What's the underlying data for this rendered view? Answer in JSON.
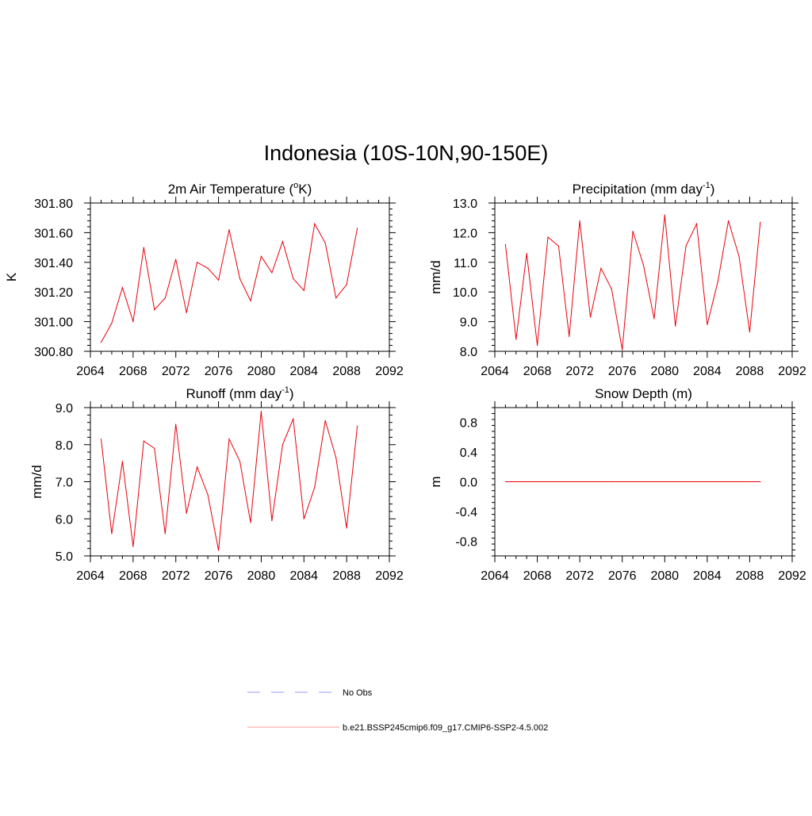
{
  "page_title": "Indonesia (10S-10N,90-150E)",
  "colors": {
    "model_line": "#e8000b",
    "obs_line": "#9a9aff",
    "axis": "#000000",
    "model_legend": "#ff9a9a"
  },
  "legend": {
    "items": [
      {
        "label": "No Obs",
        "style": "dashed",
        "color": "#9a9aff"
      },
      {
        "label": "b.e21.BSSP245cmip6.f09_g17.CMIP6-SSP2-4.5.002",
        "style": "solid",
        "color": "#ff9a9a"
      }
    ]
  },
  "chart_data": [
    {
      "id": "temp",
      "type": "line",
      "title": "2m Air Temperature (",
      "title_sup": "o",
      "title_end": "K)",
      "ylabel": "K",
      "xlim": [
        2064,
        2092
      ],
      "ylim": [
        300.8,
        301.8
      ],
      "xticks": [
        2064,
        2068,
        2072,
        2076,
        2080,
        2084,
        2088,
        2092
      ],
      "yticks": [
        300.8,
        301.0,
        301.2,
        301.4,
        301.6,
        301.8
      ],
      "ytick_labels": [
        "300.80",
        "301.00",
        "301.20",
        "301.40",
        "301.60",
        "301.80"
      ],
      "x": [
        2065,
        2066,
        2067,
        2068,
        2069,
        2070,
        2071,
        2072,
        2073,
        2074,
        2075,
        2076,
        2077,
        2078,
        2079,
        2080,
        2081,
        2082,
        2083,
        2084,
        2085,
        2086,
        2087,
        2088,
        2089
      ],
      "series": [
        {
          "values": [
            300.86,
            300.99,
            301.23,
            301.0,
            301.5,
            301.08,
            301.16,
            301.42,
            301.06,
            301.4,
            301.36,
            301.28,
            301.62,
            301.29,
            301.14,
            301.44,
            301.33,
            301.54,
            301.29,
            301.21,
            301.66,
            301.53,
            301.16,
            301.25,
            301.63
          ]
        }
      ]
    },
    {
      "id": "precip",
      "type": "line",
      "title": "Precipitation (mm day",
      "title_sup": "-1",
      "title_end": ")",
      "ylabel": "mm/d",
      "xlim": [
        2064,
        2092
      ],
      "ylim": [
        8.0,
        13.0
      ],
      "xticks": [
        2064,
        2068,
        2072,
        2076,
        2080,
        2084,
        2088,
        2092
      ],
      "yticks": [
        8.0,
        9.0,
        10.0,
        11.0,
        12.0,
        13.0
      ],
      "ytick_labels": [
        "8.0",
        "9.0",
        "10.0",
        "11.0",
        "12.0",
        "13.0"
      ],
      "x": [
        2065,
        2066,
        2067,
        2068,
        2069,
        2070,
        2071,
        2072,
        2073,
        2074,
        2075,
        2076,
        2077,
        2078,
        2079,
        2080,
        2081,
        2082,
        2083,
        2084,
        2085,
        2086,
        2087,
        2088,
        2089
      ],
      "series": [
        {
          "values": [
            11.6,
            8.4,
            11.3,
            8.2,
            11.85,
            11.55,
            8.5,
            12.4,
            9.15,
            10.8,
            10.1,
            8.05,
            12.05,
            10.9,
            9.1,
            12.6,
            8.85,
            11.55,
            12.3,
            8.9,
            10.35,
            12.4,
            11.2,
            8.65,
            12.35
          ]
        }
      ]
    },
    {
      "id": "runoff",
      "type": "line",
      "title": "Runoff (mm day",
      "title_sup": "-1",
      "title_end": ")",
      "ylabel": "mm/d",
      "xlim": [
        2064,
        2092
      ],
      "ylim": [
        5.0,
        9.0
      ],
      "xticks": [
        2064,
        2068,
        2072,
        2076,
        2080,
        2084,
        2088,
        2092
      ],
      "yticks": [
        5.0,
        6.0,
        7.0,
        8.0,
        9.0
      ],
      "ytick_labels": [
        "5.0",
        "6.0",
        "7.0",
        "8.0",
        "9.0"
      ],
      "x": [
        2065,
        2066,
        2067,
        2068,
        2069,
        2070,
        2071,
        2072,
        2073,
        2074,
        2075,
        2076,
        2077,
        2078,
        2079,
        2080,
        2081,
        2082,
        2083,
        2084,
        2085,
        2086,
        2087,
        2088,
        2089
      ],
      "series": [
        {
          "values": [
            8.15,
            5.6,
            7.55,
            5.25,
            8.1,
            7.9,
            5.6,
            8.55,
            6.15,
            7.4,
            6.65,
            5.15,
            8.15,
            7.55,
            5.9,
            8.9,
            5.95,
            8.0,
            8.7,
            6.0,
            6.85,
            8.65,
            7.65,
            5.75,
            8.5
          ]
        }
      ]
    },
    {
      "id": "snow",
      "type": "line",
      "title": "Snow Depth (m)",
      "title_sup": "",
      "title_end": "",
      "ylabel": "m",
      "xlim": [
        2064,
        2092
      ],
      "ylim": [
        -1.0,
        1.0
      ],
      "xticks": [
        2064,
        2068,
        2072,
        2076,
        2080,
        2084,
        2088,
        2092
      ],
      "yticks": [
        -0.8,
        -0.4,
        0.0,
        0.4,
        0.8
      ],
      "ytick_labels": [
        "-0.8",
        "-0.4",
        "0.0",
        "0.4",
        "0.8"
      ],
      "x": [
        2065,
        2066,
        2067,
        2068,
        2069,
        2070,
        2071,
        2072,
        2073,
        2074,
        2075,
        2076,
        2077,
        2078,
        2079,
        2080,
        2081,
        2082,
        2083,
        2084,
        2085,
        2086,
        2087,
        2088,
        2089
      ],
      "series": [
        {
          "values": [
            0,
            0,
            0,
            0,
            0,
            0,
            0,
            0,
            0,
            0,
            0,
            0,
            0,
            0,
            0,
            0,
            0,
            0,
            0,
            0,
            0,
            0,
            0,
            0,
            0
          ]
        }
      ]
    }
  ]
}
